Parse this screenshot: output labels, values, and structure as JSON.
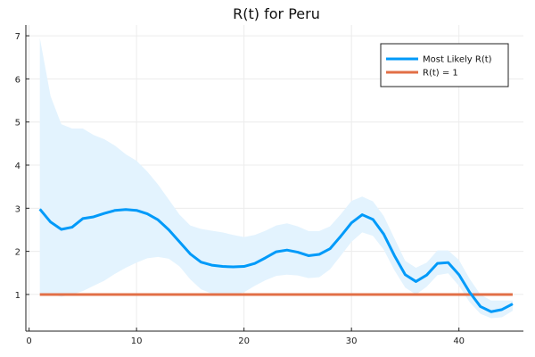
{
  "chart_data": {
    "type": "line",
    "title": "R(t) for Peru",
    "xlabel": "",
    "ylabel": "",
    "xlim": [
      -0.3,
      46
    ],
    "ylim": [
      0.15,
      7.25
    ],
    "xticks": [
      0,
      10,
      20,
      30,
      40
    ],
    "yticks": [
      1,
      2,
      3,
      4,
      5,
      6,
      7
    ],
    "grid": true,
    "legend_position": "top-right",
    "colors": {
      "most_likely": "#009af9",
      "band_fill": "#e3f3fe",
      "reference": "#e26f46",
      "grid": "#ececec",
      "axis": "#222222"
    },
    "series": [
      {
        "name": "Most Likely R(t)",
        "x": [
          1,
          2,
          3,
          4,
          5,
          6,
          7,
          8,
          9,
          10,
          11,
          12,
          13,
          14,
          15,
          16,
          17,
          18,
          19,
          20,
          21,
          22,
          23,
          24,
          25,
          26,
          27,
          28,
          29,
          30,
          31,
          32,
          33,
          34,
          35,
          36,
          37,
          38,
          39,
          40,
          41,
          42,
          43,
          44,
          45
        ],
        "y": [
          2.98,
          2.68,
          2.51,
          2.56,
          2.76,
          2.8,
          2.88,
          2.95,
          2.97,
          2.95,
          2.87,
          2.73,
          2.5,
          2.22,
          1.94,
          1.75,
          1.68,
          1.65,
          1.64,
          1.65,
          1.72,
          1.85,
          1.99,
          2.03,
          1.98,
          1.9,
          1.93,
          2.06,
          2.35,
          2.66,
          2.85,
          2.74,
          2.4,
          1.9,
          1.46,
          1.3,
          1.45,
          1.72,
          1.74,
          1.46,
          1.05,
          0.72,
          0.6,
          0.65,
          0.78
        ]
      },
      {
        "name": "R(t) = 1",
        "x": [
          1,
          45
        ],
        "y": [
          1,
          1
        ]
      }
    ],
    "band": {
      "x": [
        1,
        2,
        3,
        4,
        5,
        6,
        7,
        8,
        9,
        10,
        11,
        12,
        13,
        14,
        15,
        16,
        17,
        18,
        19,
        20,
        21,
        22,
        23,
        24,
        25,
        26,
        27,
        28,
        29,
        30,
        31,
        32,
        33,
        34,
        35,
        36,
        37,
        38,
        39,
        40,
        41,
        42,
        43,
        44,
        45
      ],
      "upper": [
        6.95,
        5.6,
        4.95,
        4.85,
        4.85,
        4.7,
        4.6,
        4.45,
        4.25,
        4.1,
        3.85,
        3.55,
        3.2,
        2.85,
        2.6,
        2.52,
        2.48,
        2.44,
        2.38,
        2.33,
        2.38,
        2.48,
        2.6,
        2.65,
        2.58,
        2.47,
        2.47,
        2.58,
        2.86,
        3.17,
        3.27,
        3.16,
        2.82,
        2.3,
        1.78,
        1.62,
        1.74,
        2.02,
        2.02,
        1.8,
        1.36,
        1.0,
        0.86,
        0.86,
        0.86
      ],
      "lower": [
        1.0,
        1.0,
        0.95,
        1.0,
        1.08,
        1.2,
        1.32,
        1.48,
        1.62,
        1.74,
        1.84,
        1.87,
        1.83,
        1.65,
        1.35,
        1.12,
        1.02,
        0.98,
        0.98,
        1.05,
        1.2,
        1.33,
        1.43,
        1.46,
        1.44,
        1.38,
        1.4,
        1.58,
        1.9,
        2.22,
        2.44,
        2.36,
        2.04,
        1.56,
        1.16,
        1.0,
        1.18,
        1.45,
        1.49,
        1.2,
        0.82,
        0.55,
        0.45,
        0.47,
        0.62
      ]
    }
  }
}
